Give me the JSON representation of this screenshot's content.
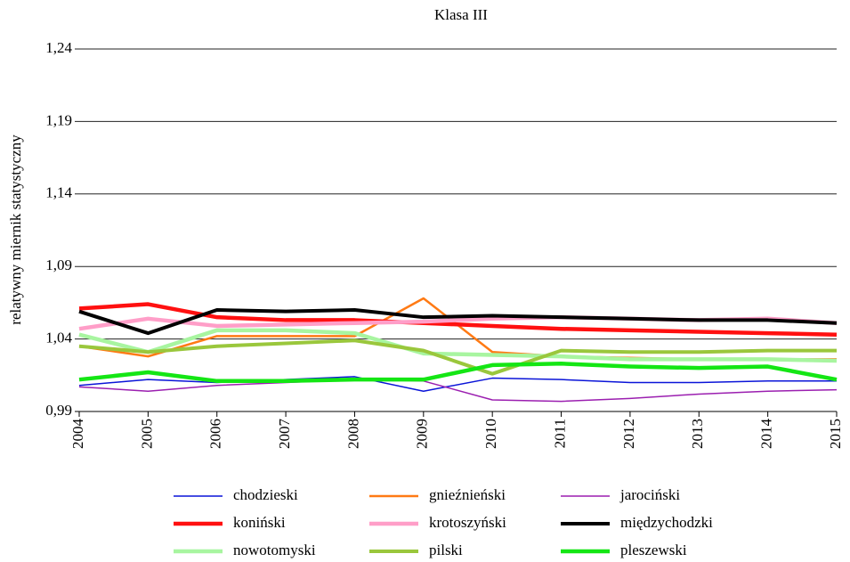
{
  "chart_data": {
    "type": "line",
    "title": "Klasa III",
    "y_label": "relatywny miernik statystyczny",
    "categories": [
      "2004",
      "2005",
      "2006",
      "2007",
      "2008",
      "2009",
      "2010",
      "2011",
      "2012",
      "2013",
      "2014",
      "2015"
    ],
    "ylim": [
      0.99,
      1.24
    ],
    "yticks": [
      {
        "value": 0.99,
        "label": "0,99"
      },
      {
        "value": 1.04,
        "label": "1,04"
      },
      {
        "value": 1.09,
        "label": "1,09"
      },
      {
        "value": 1.14,
        "label": "1,14"
      },
      {
        "value": 1.19,
        "label": "1,19"
      },
      {
        "value": 1.24,
        "label": "1,24"
      }
    ],
    "grid": true,
    "series": [
      {
        "name": "chodzieski",
        "color": "#0a14d8",
        "line_width": 1.5,
        "values": [
          1.008,
          1.012,
          1.01,
          1.012,
          1.014,
          1.004,
          1.013,
          1.012,
          1.01,
          1.01,
          1.011,
          1.011
        ]
      },
      {
        "name": "gnieźnieński",
        "color": "#ff7a14",
        "line_width": 2.5,
        "values": [
          1.035,
          1.028,
          1.042,
          1.042,
          1.042,
          1.068,
          1.031,
          1.028,
          1.027,
          1.026,
          1.026,
          1.026
        ]
      },
      {
        "name": "jarociński",
        "color": "#9b1fb0",
        "line_width": 1.5,
        "values": [
          1.007,
          1.004,
          1.008,
          1.01,
          1.012,
          1.011,
          0.998,
          0.997,
          0.999,
          1.002,
          1.004,
          1.005
        ]
      },
      {
        "name": "koniński",
        "color": "#ff1010",
        "line_width": 4.5,
        "values": [
          1.061,
          1.064,
          1.055,
          1.053,
          1.053,
          1.051,
          1.049,
          1.047,
          1.046,
          1.045,
          1.044,
          1.043
        ]
      },
      {
        "name": "krotoszyński",
        "color": "#ff9ec8",
        "line_width": 4.5,
        "values": [
          1.047,
          1.054,
          1.049,
          1.05,
          1.051,
          1.052,
          1.054,
          1.055,
          1.054,
          1.053,
          1.054,
          1.051
        ]
      },
      {
        "name": "międzychodzki",
        "color": "#000000",
        "line_width": 4,
        "values": [
          1.059,
          1.044,
          1.06,
          1.059,
          1.06,
          1.055,
          1.056,
          1.055,
          1.054,
          1.053,
          1.053,
          1.051
        ]
      },
      {
        "name": "nowotomyski",
        "color": "#a8f5a0",
        "line_width": 4.5,
        "values": [
          1.043,
          1.031,
          1.046,
          1.046,
          1.044,
          1.03,
          1.029,
          1.028,
          1.026,
          1.026,
          1.026,
          1.025
        ]
      },
      {
        "name": "pilski",
        "color": "#9ac73c",
        "line_width": 4,
        "values": [
          1.035,
          1.031,
          1.035,
          1.037,
          1.039,
          1.032,
          1.016,
          1.032,
          1.031,
          1.031,
          1.032,
          1.032
        ]
      },
      {
        "name": "pleszewski",
        "color": "#14e614",
        "line_width": 4.5,
        "values": [
          1.012,
          1.017,
          1.011,
          1.011,
          1.012,
          1.012,
          1.022,
          1.023,
          1.021,
          1.02,
          1.021,
          1.012
        ]
      }
    ]
  }
}
